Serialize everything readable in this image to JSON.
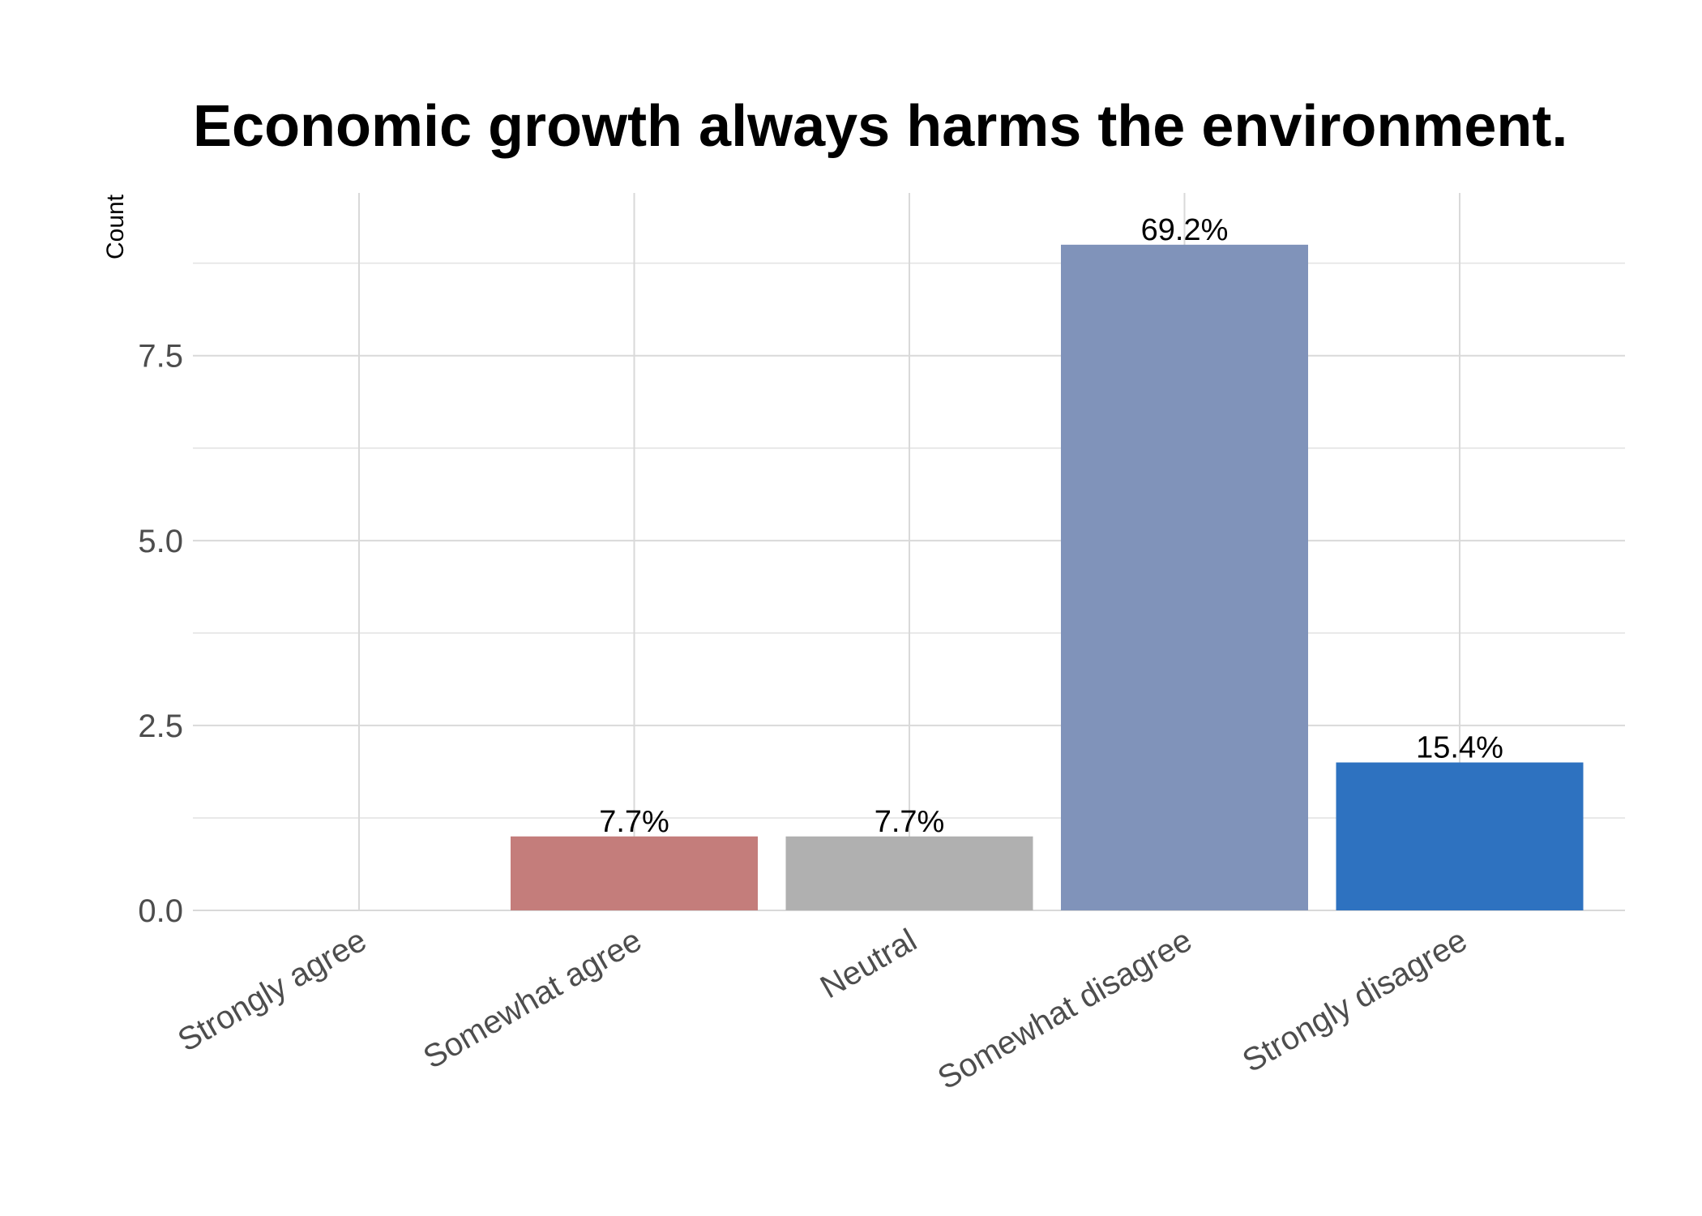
{
  "chart_data": {
    "type": "bar",
    "title": "Economic growth always harms the environment.",
    "xlabel": "",
    "ylabel": "Count",
    "categories": [
      "Strongly agree",
      "Somewhat agree",
      "Neutral",
      "Somewhat disagree",
      "Strongly disagree"
    ],
    "values": [
      0,
      1,
      1,
      9,
      2
    ],
    "data_labels": [
      "",
      "7.7%",
      "7.7%",
      "69.2%",
      "15.4%"
    ],
    "colors": [
      "#e89a9a",
      "#c47d7b",
      "#b0b0b0",
      "#8093ba",
      "#2e72c0"
    ],
    "yticks": [
      "0.0",
      "2.5",
      "5.0",
      "7.5"
    ],
    "ylim": [
      0,
      9.7
    ],
    "grid": true
  }
}
